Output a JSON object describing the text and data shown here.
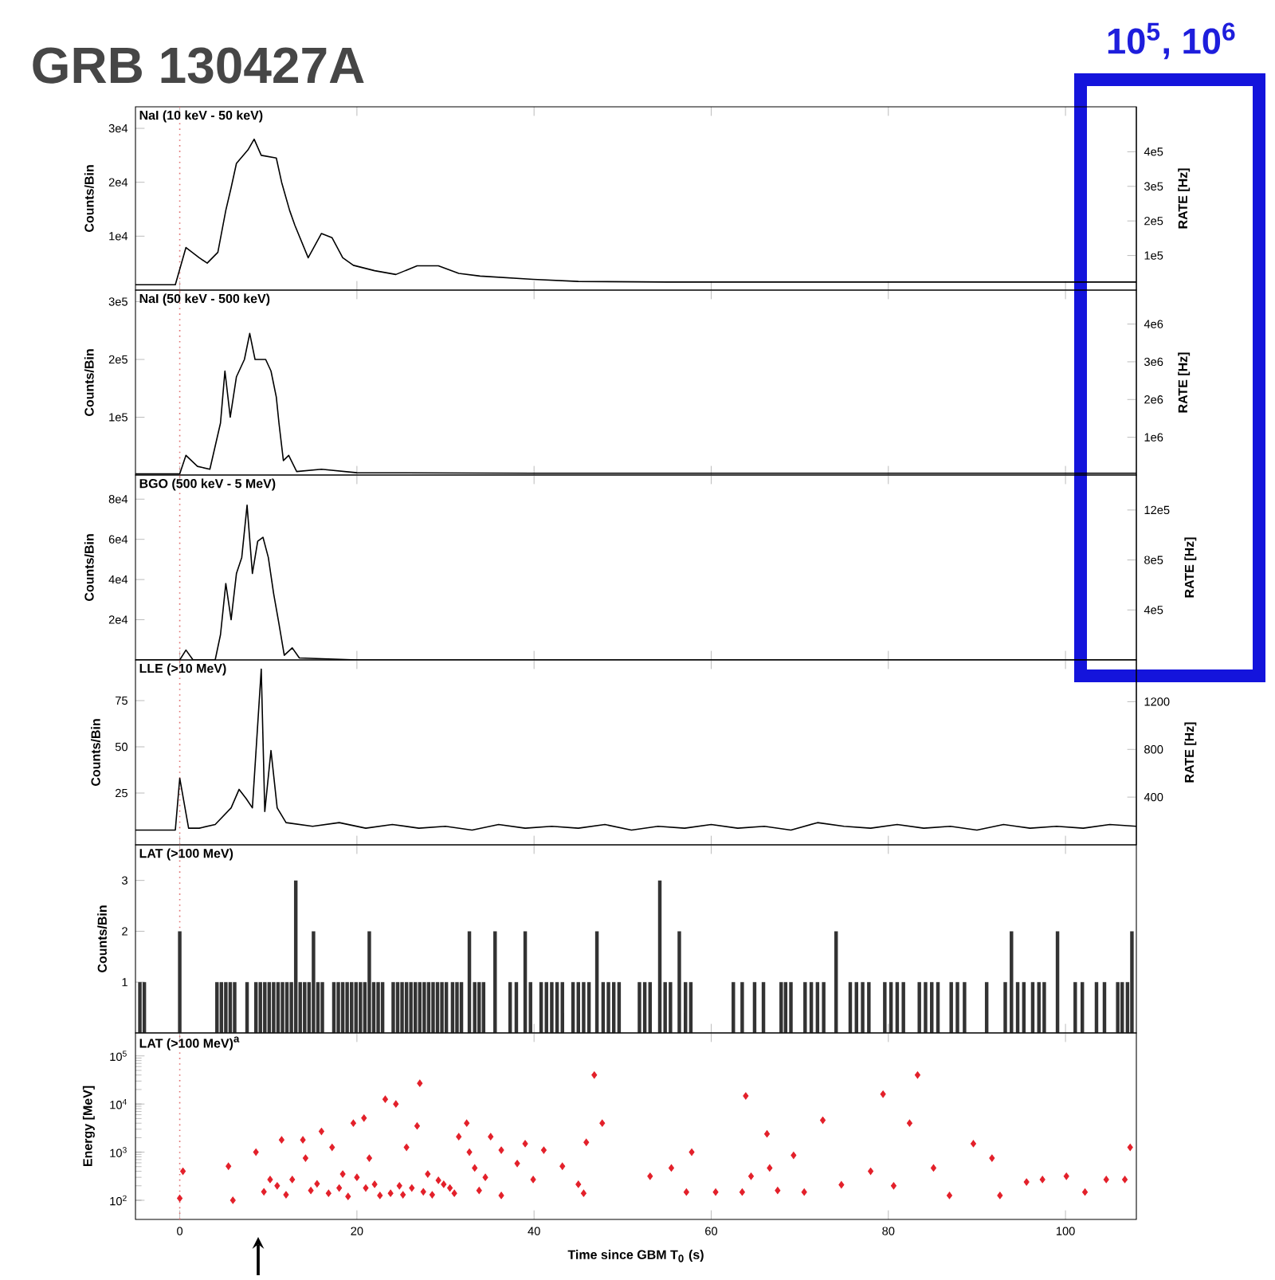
{
  "chart_data": [
    {
      "type": "line",
      "title": "GRB 130427A",
      "subtitle": "NaI (10 keV - 50 keV)",
      "ylabel": "Counts/Bin",
      "y2label": "RATE [Hz]",
      "annotations": [
        "10$^{5}$, 10$^{6}$"
      ],
      "tick_labels": "y",
      "xlim": [
        -5,
        108
      ],
      "xticks": [
        0,
        20,
        40,
        60,
        80,
        100
      ],
      "ylim": [
        0,
        34000
      ],
      "yticks": [
        {
          "value": 30000,
          "label": "3e4"
        },
        {
          "value": 20000,
          "label": "2e4"
        },
        {
          "value": 10000,
          "label": "1e4"
        }
      ],
      "y2lim": [
        0,
        530000
      ],
      "y2ticks": [
        {
          "value": 400000,
          "label": "4e5"
        },
        {
          "value": 300000,
          "label": "3e5"
        },
        {
          "value": 200000,
          "label": "2e5"
        },
        {
          "value": 100000,
          "label": "1e5"
        }
      ],
      "ref_lines": [
        {
          "axis": "x",
          "value": 0,
          "color": "#e07070",
          "line_style": "dotted"
        }
      ],
      "series": [
        {
          "color": "#000000",
          "x": [
            -5,
            -0.5,
            0.7,
            2.2,
            3.1,
            4.3,
            5.2,
            5.8,
            6.4,
            7.7,
            8.4,
            9.2,
            10.9,
            11.5,
            12.4,
            13.0,
            14.5,
            16.0,
            17.2,
            18.4,
            19.6,
            22.0,
            24.4,
            26.8,
            29.2,
            31.5,
            33.9,
            39.9,
            45,
            55,
            70,
            90,
            108
          ],
          "values": [
            1000,
            1000,
            7900,
            6000,
            5000,
            7000,
            14800,
            19000,
            23500,
            26000,
            28000,
            25000,
            24500,
            20000,
            14800,
            12000,
            6000,
            10500,
            9700,
            6000,
            4600,
            3600,
            2900,
            4500,
            4500,
            3100,
            2600,
            2000,
            1600,
            1500,
            1500,
            1500,
            1500
          ]
        }
      ]
    },
    {
      "type": "line",
      "title": "NaI (50 keV - 500 keV)",
      "ylabel": "Counts/Bin",
      "y2label": "RATE [Hz]",
      "tick_labels": "y",
      "xlim": [
        -5,
        108
      ],
      "xticks": [
        0,
        20,
        40,
        60,
        80,
        100
      ],
      "ylim": [
        0,
        320000
      ],
      "yticks": [
        {
          "value": 300000,
          "label": "3e5"
        },
        {
          "value": 200000,
          "label": "2e5"
        },
        {
          "value": 100000,
          "label": "1e5"
        }
      ],
      "y2lim": [
        0,
        4900000
      ],
      "y2ticks": [
        {
          "value": 4000000,
          "label": "4e6"
        },
        {
          "value": 3000000,
          "label": "3e6"
        },
        {
          "value": 2000000,
          "label": "2e6"
        },
        {
          "value": 1000000,
          "label": "1e6"
        }
      ],
      "ref_lines": [
        {
          "axis": "x",
          "value": 0,
          "color": "#e07070",
          "line_style": "dotted"
        }
      ],
      "series": [
        {
          "color": "#000000",
          "x": [
            -5,
            0.0,
            0.7,
            2.0,
            3.4,
            4.6,
            5.1,
            5.7,
            6.4,
            7.3,
            7.9,
            8.5,
            9.7,
            10.3,
            10.9,
            11.2,
            11.7,
            12.3,
            13.2,
            16.0,
            20.0,
            40,
            70,
            108
          ],
          "values": [
            2000,
            2000,
            34000,
            15000,
            10000,
            90000,
            180000,
            100000,
            170000,
            200000,
            245000,
            200000,
            200000,
            180000,
            135000,
            90000,
            25000,
            34000,
            6000,
            10000,
            4000,
            3000,
            3000,
            3000
          ]
        }
      ]
    },
    {
      "type": "line",
      "title": "BGO (500 keV - 5 MeV)",
      "ylabel": "Counts/Bin",
      "y2label": "RATE [Hz]",
      "tick_labels": "y",
      "xlim": [
        -5,
        108
      ],
      "xticks": [
        0,
        20,
        40,
        60,
        80,
        100
      ],
      "ylim": [
        0,
        92000
      ],
      "yticks": [
        {
          "value": 80000,
          "label": "8e4"
        },
        {
          "value": 60000,
          "label": "6e4"
        },
        {
          "value": 40000,
          "label": "4e4"
        },
        {
          "value": 20000,
          "label": "2e4"
        }
      ],
      "y2lim": [
        0,
        1480000
      ],
      "y2ticks": [
        {
          "value": 1200000,
          "label": "12e5"
        },
        {
          "value": 800000,
          "label": "8e5"
        },
        {
          "value": 400000,
          "label": "4e5"
        }
      ],
      "ref_lines": [
        {
          "axis": "x",
          "value": 0,
          "color": "#e07070",
          "line_style": "dotted"
        }
      ],
      "series": [
        {
          "color": "#000000",
          "x": [
            -5,
            0.0,
            0.7,
            1.5,
            4.0,
            4.6,
            5.2,
            5.8,
            6.4,
            7.0,
            7.6,
            8.2,
            8.8,
            9.4,
            10.0,
            10.6,
            11.2,
            11.8,
            12.7,
            13.5,
            20,
            108
          ],
          "values": [
            0,
            0,
            4900,
            0,
            0,
            12600,
            38000,
            20000,
            43000,
            51000,
            77000,
            43000,
            59000,
            61000,
            51000,
            33000,
            18000,
            2300,
            6000,
            1000,
            0,
            0
          ]
        }
      ]
    },
    {
      "type": "line",
      "title": "LLE (>10 MeV)",
      "ylabel": "Counts/Bin",
      "y2label": "RATE [Hz]",
      "tick_labels": "y",
      "xlim": [
        -5,
        108
      ],
      "xticks": [
        0,
        20,
        40,
        60,
        80,
        100
      ],
      "ylim": [
        -3,
        97
      ],
      "yticks": [
        25,
        50,
        75
      ],
      "y2lim": [
        0,
        1550
      ],
      "y2ticks": [
        400,
        800,
        1200
      ],
      "ref_lines": [
        {
          "axis": "x",
          "value": 0,
          "color": "#e07070",
          "line_style": "dotted"
        }
      ],
      "series": [
        {
          "color": "#000000",
          "x": [
            -5,
            -0.5,
            0.0,
            1.0,
            2.2,
            4.0,
            5.8,
            6.7,
            7.5,
            8.2,
            9.2,
            9.6,
            10.3,
            11.0,
            12.0,
            15,
            18,
            21,
            24,
            27,
            30,
            33,
            36,
            39,
            42,
            45,
            48,
            51,
            54,
            57,
            60,
            63,
            66,
            69,
            72,
            75,
            78,
            81,
            84,
            87,
            90,
            93,
            96,
            99,
            102,
            105,
            108
          ],
          "values": [
            5,
            5,
            33,
            6,
            6,
            8,
            17,
            27,
            22,
            17,
            92,
            15,
            48,
            17,
            9,
            7,
            9,
            6,
            8,
            6,
            7,
            5,
            8,
            6,
            7,
            6,
            8,
            5,
            7,
            6,
            8,
            6,
            7,
            5,
            9,
            7,
            6,
            8,
            6,
            7,
            5,
            8,
            6,
            7,
            6,
            8,
            7
          ]
        }
      ]
    },
    {
      "type": "bar",
      "title": "LAT (>100 MeV)",
      "ylabel": "Counts/Bin",
      "tick_labels": "y",
      "xlim": [
        -5,
        108
      ],
      "xticks": [
        0,
        20,
        40,
        60,
        80,
        100
      ],
      "ylim": [
        0,
        3.7
      ],
      "yticks": [
        1,
        2,
        3
      ],
      "ref_lines": [
        {
          "axis": "x",
          "value": 0,
          "color": "#e07070",
          "line_style": "dotted"
        }
      ],
      "series": [
        {
          "color": "#333333",
          "x": [
            -4.5,
            -4.0,
            0.0,
            4.2,
            4.7,
            5.2,
            5.7,
            6.2,
            7.6,
            8.6,
            9.1,
            9.6,
            10.1,
            10.6,
            11.1,
            11.6,
            12.1,
            12.6,
            13.1,
            13.6,
            14.1,
            14.6,
            15.1,
            15.6,
            16.1,
            17.4,
            17.9,
            18.4,
            18.9,
            19.4,
            19.9,
            20.4,
            20.9,
            21.4,
            21.9,
            22.4,
            22.9,
            24.1,
            24.6,
            25.1,
            25.6,
            26.1,
            26.6,
            27.1,
            27.6,
            28.1,
            28.6,
            29.1,
            29.6,
            30.1,
            30.8,
            31.3,
            31.8,
            32.7,
            33.3,
            33.8,
            34.3,
            35.6,
            37.3,
            38.0,
            39.0,
            39.6,
            40.8,
            41.4,
            42.0,
            42.6,
            43.2,
            44.4,
            45.0,
            45.6,
            46.2,
            47.1,
            47.8,
            48.4,
            49.0,
            49.6,
            51.9,
            52.5,
            53.1,
            54.2,
            54.8,
            55.4,
            56.4,
            57.1,
            57.7,
            62.5,
            63.5,
            64.9,
            65.9,
            67.9,
            68.4,
            69.0,
            70.6,
            71.3,
            72.0,
            72.7,
            74.1,
            75.7,
            76.4,
            77.1,
            77.8,
            79.6,
            80.3,
            81.0,
            81.7,
            83.5,
            84.2,
            84.9,
            85.6,
            87.1,
            87.8,
            88.6,
            91.1,
            93.2,
            93.9,
            94.6,
            95.3,
            96.3,
            97.0,
            97.6,
            99.1,
            101.1,
            101.9,
            103.5,
            104.4,
            105.9,
            106.4,
            107.0,
            107.5
          ],
          "values": [
            1,
            1,
            2,
            1,
            1,
            1,
            1,
            1,
            1,
            1,
            1,
            1,
            1,
            1,
            1,
            1,
            1,
            1,
            3,
            1,
            1,
            1,
            2,
            1,
            1,
            1,
            1,
            1,
            1,
            1,
            1,
            1,
            1,
            2,
            1,
            1,
            1,
            1,
            1,
            1,
            1,
            1,
            1,
            1,
            1,
            1,
            1,
            1,
            1,
            1,
            1,
            1,
            1,
            2,
            1,
            1,
            1,
            2,
            1,
            1,
            2,
            1,
            1,
            1,
            1,
            1,
            1,
            1,
            1,
            1,
            1,
            2,
            1,
            1,
            1,
            1,
            1,
            1,
            1,
            3,
            1,
            1,
            2,
            1,
            1,
            1,
            1,
            1,
            1,
            1,
            1,
            1,
            1,
            1,
            1,
            1,
            2,
            1,
            1,
            1,
            1,
            1,
            1,
            1,
            1,
            1,
            1,
            1,
            1,
            1,
            1,
            1,
            1,
            1,
            2,
            1,
            1,
            1,
            1,
            1,
            2,
            1,
            1,
            1,
            1,
            1,
            1,
            1,
            2
          ]
        }
      ]
    },
    {
      "type": "scatter",
      "title": "LAT (>100 MeV)$^{a}$",
      "ylabel": "Energy [MeV]",
      "xlabel": "Time since GBM T$_{0}$ (s)",
      "log": "y",
      "marker": "diamond",
      "xlim": [
        -5,
        108
      ],
      "xticks": [
        0,
        20,
        40,
        60,
        80,
        100
      ],
      "ylim": [
        40,
        300000
      ],
      "yticks": [
        {
          "value": 100,
          "label": "10$^{2}$"
        },
        {
          "value": 1000,
          "label": "10$^{3}$"
        },
        {
          "value": 10000,
          "label": "10$^{4}$"
        },
        {
          "value": 100000,
          "label": "10$^{5}$"
        }
      ],
      "ref_lines": [
        {
          "axis": "x",
          "value": 0,
          "color": "#e07070",
          "line_style": "dotted"
        }
      ],
      "series": [
        {
          "color": "#e3202a",
          "x": [
            0.36,
            0.0,
            5.5,
            6.0,
            8.6,
            10.2,
            11.5,
            12.7,
            13.9,
            14.2,
            14.8,
            16.0,
            17.2,
            18.4,
            19.6,
            20.8,
            21.4,
            22.0,
            22.6,
            23.2,
            24.4,
            25.6,
            27.1,
            26.8,
            28.0,
            29.8,
            31.5,
            32.4,
            32.7,
            33.3,
            35.1,
            36.3,
            36.3,
            38.1,
            39.0,
            39.9,
            41.1,
            43.2,
            45.0,
            45.9,
            46.8,
            47.7,
            45.6,
            53.1,
            55.5,
            57.8,
            57.2,
            60.5,
            63.5,
            63.9,
            64.5,
            66.3,
            66.6,
            67.5,
            69.3,
            70.5,
            72.6,
            74.7,
            78.0,
            79.4,
            80.6,
            82.4,
            83.3,
            85.1,
            86.9,
            89.6,
            91.7,
            92.6,
            95.6,
            97.4,
            100.1,
            102.2,
            104.6,
            106.7,
            107.3,
            9.5,
            11.0,
            12.0,
            15.5,
            16.8,
            18.0,
            19.0,
            20.0,
            21.0,
            23.8,
            24.8,
            25.2,
            26.2,
            27.5,
            28.5,
            29.2,
            30.5,
            31.0,
            33.8,
            34.5
          ],
          "values": [
            400,
            110,
            510,
            100,
            1000,
            270,
            1800,
            270,
            1800,
            750,
            160,
            2700,
            1260,
            350,
            4000,
            5100,
            750,
            215,
            126,
            12600,
            10000,
            1260,
            27000,
            3500,
            350,
            215,
            2100,
            4000,
            1000,
            470,
            2100,
            126,
            1100,
            580,
            1500,
            270,
            1100,
            510,
            215,
            1600,
            40000,
            4000,
            140,
            316,
            470,
            1000,
            148,
            148,
            148,
            14700,
            316,
            2400,
            470,
            160,
            860,
            148,
            4600,
            210,
            400,
            16000,
            200,
            4000,
            40000,
            470,
            126,
            1500,
            750,
            126,
            240,
            270,
            316,
            148,
            270,
            270,
            1260,
            150,
            200,
            130,
            220,
            140,
            180,
            120,
            300,
            180,
            140,
            200,
            130,
            180,
            150,
            130,
            260,
            180,
            140,
            160,
            300
          ]
        }
      ]
    }
  ]
}
